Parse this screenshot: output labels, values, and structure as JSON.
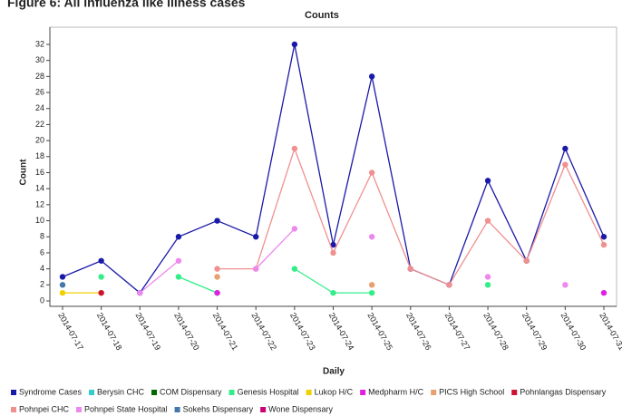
{
  "heading": "Figure 6: All influenza like illness cases",
  "chart_data": {
    "type": "line",
    "title": "Counts",
    "x_label": "Daily",
    "y_label": "Count",
    "categories": [
      "2014-07-17",
      "2014-07-18",
      "2014-07-19",
      "2014-07-20",
      "2014-07-21",
      "2014-07-22",
      "2014-07-23",
      "2014-07-24",
      "2014-07-25",
      "2014-07-26",
      "2014-07-27",
      "2014-07-28",
      "2014-07-29",
      "2014-07-30",
      "2014-07-31"
    ],
    "ylim": [
      0,
      33
    ],
    "yticks": [
      0,
      2,
      4,
      6,
      8,
      10,
      12,
      14,
      16,
      18,
      20,
      22,
      24,
      26,
      28,
      30,
      32
    ],
    "grid": false,
    "legend": "bottom",
    "series": [
      {
        "name": "Syndrome Cases",
        "color": "#1a1aa8",
        "values": [
          3,
          5,
          1,
          8,
          10,
          8,
          32,
          7,
          28,
          4,
          2,
          15,
          5,
          19,
          8
        ]
      },
      {
        "name": "Berysin CHC",
        "color": "#33cccc",
        "values": [
          null,
          null,
          null,
          null,
          null,
          null,
          null,
          null,
          null,
          null,
          null,
          null,
          null,
          null,
          null
        ]
      },
      {
        "name": "COM Dispensary",
        "color": "#006600",
        "values": [
          null,
          null,
          null,
          null,
          null,
          null,
          null,
          null,
          null,
          null,
          null,
          null,
          null,
          null,
          null
        ]
      },
      {
        "name": "Genesis Hospital",
        "color": "#33ee88",
        "values": [
          null,
          3,
          null,
          3,
          1,
          null,
          4,
          1,
          1,
          null,
          null,
          2,
          null,
          null,
          null
        ]
      },
      {
        "name": "Lukop H/C",
        "color": "#f0d000",
        "values": [
          1,
          1,
          null,
          null,
          null,
          null,
          null,
          null,
          null,
          null,
          null,
          null,
          null,
          null,
          null
        ]
      },
      {
        "name": "Medpharm H/C",
        "color": "#e020e0",
        "values": [
          null,
          null,
          null,
          null,
          1,
          null,
          null,
          null,
          null,
          null,
          null,
          null,
          null,
          null,
          1
        ]
      },
      {
        "name": "PICS High School",
        "color": "#e8a070",
        "values": [
          null,
          null,
          null,
          null,
          3,
          null,
          null,
          null,
          2,
          null,
          null,
          null,
          null,
          null,
          null
        ]
      },
      {
        "name": "Pohnlangas Dispensary",
        "color": "#cc1133",
        "values": [
          null,
          1,
          null,
          null,
          null,
          null,
          null,
          null,
          null,
          null,
          null,
          null,
          null,
          null,
          null
        ]
      },
      {
        "name": "Pohnpei CHC",
        "color": "#f09090",
        "values": [
          null,
          null,
          null,
          null,
          4,
          4,
          19,
          6,
          16,
          4,
          2,
          10,
          5,
          17,
          7
        ]
      },
      {
        "name": "Pohnpei State Hospital",
        "color": "#ee88ee",
        "values": [
          null,
          null,
          1,
          5,
          null,
          4,
          9,
          null,
          8,
          null,
          null,
          3,
          null,
          2,
          null
        ]
      },
      {
        "name": "Sokehs Dispensary",
        "color": "#4477aa",
        "values": [
          2,
          null,
          null,
          null,
          null,
          null,
          null,
          null,
          null,
          null,
          null,
          null,
          null,
          null,
          null
        ]
      },
      {
        "name": "Wone Dispensary",
        "color": "#cc0077",
        "values": [
          null,
          null,
          null,
          null,
          null,
          null,
          null,
          null,
          null,
          null,
          null,
          null,
          null,
          null,
          null
        ]
      }
    ]
  }
}
